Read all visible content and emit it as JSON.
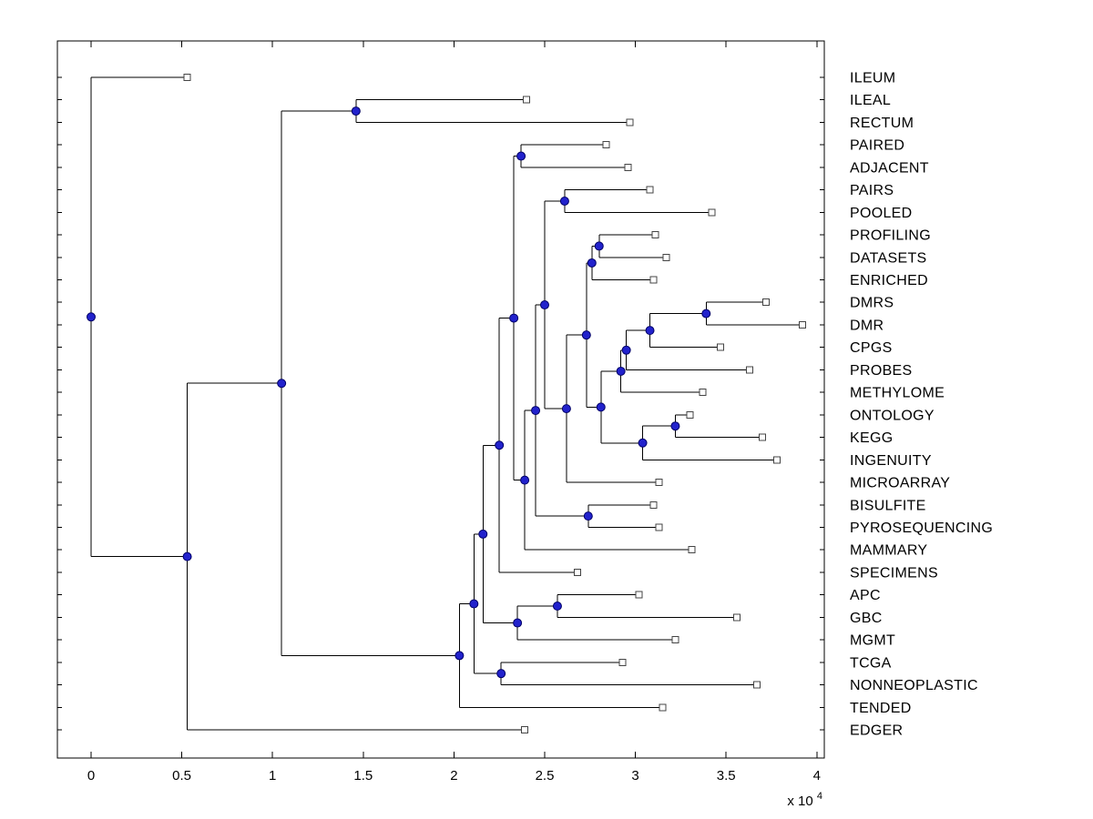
{
  "figure": {
    "background": "#ffffff",
    "description": "Hierarchical clustering dendrogram (phylogenetic-style tree), root at left, leaf labels at right"
  },
  "chart_data": {
    "type": "dendrogram",
    "orientation": "left-to-right",
    "title": "",
    "xlabel": "",
    "ylabel": "",
    "x_axis": {
      "xlim": [
        -0.19,
        4.05
      ],
      "ticks": [
        0,
        0.5,
        1,
        1.5,
        2,
        2.5,
        3,
        3.5,
        4
      ],
      "tick_labels": [
        "0",
        "0.5",
        "1",
        "1.5",
        "2",
        "2.5",
        "3",
        "3.5",
        "4"
      ],
      "multiplier_label": "x 10",
      "multiplier_exponent": "4"
    },
    "legend": null,
    "grid": false,
    "markers": {
      "leaf": "open-square",
      "branch": "filled-circle"
    },
    "colors": {
      "line": "#000000",
      "branch_fill": "#2222cc",
      "branch_edge": "#000066",
      "leaf_fill": "#ffffff",
      "leaf_edge": "#444444",
      "box": "#000000",
      "text": "#000000"
    },
    "leaf_labels": [
      "ILEUM",
      "ILEAL",
      "RECTUM",
      "PAIRED",
      "ADJACENT",
      "PAIRS",
      "POOLED",
      "PROFILING",
      "DATASETS",
      "ENRICHED",
      "DMRS",
      "DMR",
      "CPGS",
      "PROBES",
      "METHYLOME",
      "ONTOLOGY",
      "KEGG",
      "INGENUITY",
      "MICROARRAY",
      "BISULFITE",
      "PYROSEQUENCING",
      "MAMMARY",
      "SPECIMENS",
      "APC",
      "GBC",
      "MGMT",
      "TCGA",
      "NONNEOPLASTIC",
      "TENDED",
      "EDGER"
    ],
    "tree": {
      "x": 0.0,
      "children": [
        {
          "leaf": "ILEUM",
          "x": 0.53
        },
        {
          "x": 0.53,
          "children": [
            {
              "x": 1.05,
              "children": [
                {
                  "x": 1.46,
                  "children": [
                    {
                      "leaf": "ILEAL",
                      "x": 2.4
                    },
                    {
                      "leaf": "RECTUM",
                      "x": 2.97
                    }
                  ]
                },
                {
                  "x": 2.03,
                  "children": [
                    {
                      "x": 2.11,
                      "children": [
                        {
                          "x": 2.16,
                          "children": [
                            {
                              "x": 2.25,
                              "children": [
                                {
                                  "x": 2.33,
                                  "children": [
                                    {
                                      "x": 2.37,
                                      "children": [
                                        {
                                          "leaf": "PAIRED",
                                          "x": 2.84
                                        },
                                        {
                                          "leaf": "ADJACENT",
                                          "x": 2.96
                                        }
                                      ]
                                    },
                                    {
                                      "x": 2.39,
                                      "children": [
                                        {
                                          "x": 2.45,
                                          "children": [
                                            {
                                              "x": 2.5,
                                              "children": [
                                                {
                                                  "x": 2.61,
                                                  "children": [
                                                    {
                                                      "leaf": "PAIRS",
                                                      "x": 3.08
                                                    },
                                                    {
                                                      "leaf": "POOLED",
                                                      "x": 3.42
                                                    }
                                                  ]
                                                },
                                                {
                                                  "x": 2.62,
                                                  "children": [
                                                    {
                                                      "x": 2.73,
                                                      "children": [
                                                        {
                                                          "x": 2.76,
                                                          "children": [
                                                            {
                                                              "x": 2.8,
                                                              "children": [
                                                                {
                                                                  "leaf": "PROFILING",
                                                                  "x": 3.11
                                                                },
                                                                {
                                                                  "leaf": "DATASETS",
                                                                  "x": 3.17
                                                                }
                                                              ]
                                                            },
                                                            {
                                                              "leaf": "ENRICHED",
                                                              "x": 3.1
                                                            }
                                                          ]
                                                        },
                                                        {
                                                          "x": 2.81,
                                                          "children": [
                                                            {
                                                              "x": 2.92,
                                                              "children": [
                                                                {
                                                                  "x": 2.95,
                                                                  "children": [
                                                                    {
                                                                      "x": 3.08,
                                                                      "children": [
                                                                        {
                                                                          "x": 3.39,
                                                                          "children": [
                                                                            {
                                                                              "leaf": "DMRS",
                                                                              "x": 3.72
                                                                            },
                                                                            {
                                                                              "leaf": "DMR",
                                                                              "x": 3.92
                                                                            }
                                                                          ]
                                                                        },
                                                                        {
                                                                          "leaf": "CPGS",
                                                                          "x": 3.47
                                                                        }
                                                                      ]
                                                                    },
                                                                    {
                                                                      "leaf": "PROBES",
                                                                      "x": 3.63
                                                                    }
                                                                  ]
                                                                },
                                                                {
                                                                  "leaf": "METHYLOME",
                                                                  "x": 3.37
                                                                }
                                                              ]
                                                            },
                                                            {
                                                              "x": 3.04,
                                                              "children": [
                                                                {
                                                                  "x": 3.22,
                                                                  "children": [
                                                                    {
                                                                      "leaf": "ONTOLOGY",
                                                                      "x": 3.3
                                                                    },
                                                                    {
                                                                      "leaf": "KEGG",
                                                                      "x": 3.7
                                                                    }
                                                                  ]
                                                                },
                                                                {
                                                                  "leaf": "INGENUITY",
                                                                  "x": 3.78
                                                                }
                                                              ]
                                                            }
                                                          ]
                                                        }
                                                      ]
                                                    },
                                                    {
                                                      "leaf": "MICROARRAY",
                                                      "x": 3.13
                                                    }
                                                  ]
                                                }
                                              ]
                                            },
                                            {
                                              "x": 2.74,
                                              "children": [
                                                {
                                                  "leaf": "BISULFITE",
                                                  "x": 3.1
                                                },
                                                {
                                                  "leaf": "PYROSEQUENCING",
                                                  "x": 3.13
                                                }
                                              ]
                                            }
                                          ]
                                        },
                                        {
                                          "leaf": "MAMMARY",
                                          "x": 3.31
                                        }
                                      ]
                                    }
                                  ]
                                },
                                {
                                  "leaf": "SPECIMENS",
                                  "x": 2.68
                                }
                              ]
                            },
                            {
                              "x": 2.35,
                              "children": [
                                {
                                  "x": 2.57,
                                  "children": [
                                    {
                                      "leaf": "APC",
                                      "x": 3.02
                                    },
                                    {
                                      "leaf": "GBC",
                                      "x": 3.56
                                    }
                                  ]
                                },
                                {
                                  "leaf": "MGMT",
                                  "x": 3.22
                                }
                              ]
                            }
                          ]
                        },
                        {
                          "x": 2.26,
                          "children": [
                            {
                              "leaf": "TCGA",
                              "x": 2.93
                            },
                            {
                              "leaf": "NONNEOPLASTIC",
                              "x": 3.67
                            }
                          ]
                        }
                      ]
                    },
                    {
                      "leaf": "TENDED",
                      "x": 3.15
                    }
                  ]
                }
              ]
            },
            {
              "leaf": "EDGER",
              "x": 2.39
            }
          ]
        }
      ]
    }
  }
}
